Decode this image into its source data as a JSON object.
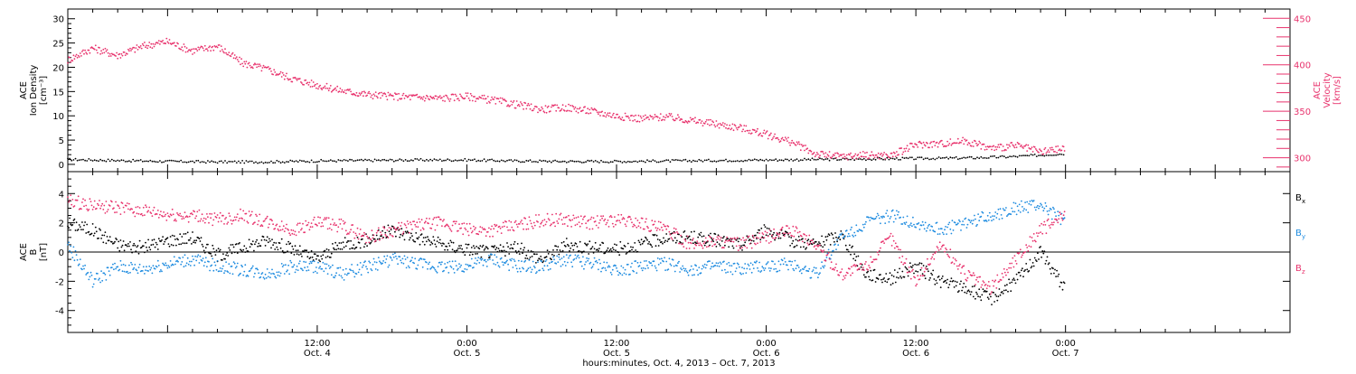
{
  "colors": {
    "black": "#000000",
    "pink": "#e8336d",
    "blue": "#1f8ce0"
  },
  "xaxis": {
    "title": "hours:minutes, Oct.  4, 2013 – Oct.  7, 2013",
    "range_hours": [
      -8,
      90
    ],
    "ticks": [
      {
        "hour": 12,
        "time": "12:00",
        "day": "Oct. 4"
      },
      {
        "hour": 24,
        "time": "0:00",
        "day": "Oct. 5"
      },
      {
        "hour": 36,
        "time": "12:00",
        "day": "Oct. 5"
      },
      {
        "hour": 48,
        "time": "0:00",
        "day": "Oct. 6"
      },
      {
        "hour": 60,
        "time": "12:00",
        "day": "Oct. 6"
      },
      {
        "hour": 72,
        "time": "0:00",
        "day": "Oct. 7"
      }
    ]
  },
  "chart_data": [
    {
      "type": "scatter",
      "panel": "top",
      "left_axis": {
        "label_lines": [
          "ACE",
          "Ion Density",
          "[cm⁻³]"
        ],
        "ylim": [
          -1.5,
          32
        ],
        "ticks": [
          0,
          5,
          10,
          15,
          20,
          25,
          30
        ],
        "color": "#000000"
      },
      "right_axis": {
        "label_lines": [
          "ACE",
          "Velocity",
          "[km/s]"
        ],
        "ylim": [
          285,
          460
        ],
        "ticks": [
          300,
          350,
          400,
          450
        ],
        "color": "#e8336d"
      },
      "series": [
        {
          "axis": "left",
          "color": "#000000",
          "x": [
            -8,
            -4,
            0,
            4,
            8,
            12,
            16,
            20,
            24,
            28,
            32,
            36,
            40,
            44,
            48,
            52,
            56,
            60,
            64,
            68,
            72
          ],
          "y": [
            1.0,
            0.8,
            0.6,
            0.5,
            0.5,
            0.7,
            0.8,
            0.9,
            0.9,
            0.7,
            0.6,
            0.6,
            0.7,
            0.8,
            0.9,
            1.0,
            1.1,
            1.2,
            1.3,
            1.6,
            2.2
          ]
        },
        {
          "axis": "right",
          "color": "#e8336d",
          "x": [
            -8,
            -6,
            -4,
            -2,
            0,
            2,
            4,
            6,
            8,
            10,
            12,
            14,
            16,
            18,
            20,
            22,
            24,
            26,
            28,
            30,
            32,
            34,
            36,
            38,
            40,
            42,
            44,
            46,
            48,
            50,
            52,
            54,
            56,
            58,
            60,
            62,
            64,
            66,
            68,
            70,
            72
          ],
          "y": [
            405,
            418,
            410,
            420,
            425,
            415,
            420,
            402,
            395,
            385,
            378,
            372,
            368,
            366,
            365,
            364,
            366,
            362,
            357,
            352,
            354,
            350,
            345,
            342,
            344,
            340,
            336,
            332,
            325,
            317,
            304,
            301,
            303,
            302,
            314,
            315,
            318,
            310,
            313,
            306,
            310
          ]
        }
      ]
    },
    {
      "type": "scatter",
      "panel": "bottom",
      "left_axis": {
        "label_lines": [
          "ACE",
          "B",
          "[nT]"
        ],
        "ylim": [
          -5.5,
          5.5
        ],
        "ticks": [
          -4,
          -2,
          0,
          2,
          4
        ],
        "color": "#000000"
      },
      "legend": [
        {
          "label": "B",
          "sub": "x",
          "color": "#000000"
        },
        {
          "label": "B",
          "sub": "y",
          "color": "#1f8ce0"
        },
        {
          "label": "B",
          "sub": "z",
          "color": "#e8336d"
        }
      ],
      "series": [
        {
          "name": "Bx",
          "color": "#000000",
          "x": [
            -8,
            -6,
            -4,
            -2,
            0,
            2,
            4,
            6,
            8,
            10,
            12,
            14,
            16,
            18,
            20,
            22,
            24,
            26,
            28,
            30,
            32,
            34,
            36,
            38,
            40,
            42,
            44,
            46,
            48,
            50,
            52,
            54,
            56,
            58,
            60,
            62,
            64,
            66,
            68,
            70,
            72
          ],
          "y": [
            2.0,
            1.5,
            0.5,
            0.3,
            0.8,
            1.0,
            -0.2,
            0.3,
            0.8,
            0.2,
            -0.5,
            0.5,
            0.8,
            1.5,
            1.0,
            0.5,
            0.2,
            0.0,
            0.3,
            -0.5,
            0.5,
            0.3,
            0.2,
            0.5,
            1.0,
            1.0,
            0.8,
            0.5,
            1.5,
            0.8,
            0.5,
            1.2,
            -1.5,
            -1.8,
            -1.0,
            -2.0,
            -2.5,
            -3.2,
            -2.0,
            0.0,
            -2.5
          ]
        },
        {
          "name": "By",
          "color": "#1f8ce0",
          "x": [
            -8,
            -6,
            -4,
            -2,
            0,
            2,
            4,
            6,
            8,
            10,
            12,
            14,
            16,
            18,
            20,
            22,
            24,
            26,
            28,
            30,
            32,
            34,
            36,
            38,
            40,
            42,
            44,
            46,
            48,
            50,
            52,
            54,
            56,
            58,
            60,
            62,
            64,
            66,
            68,
            70,
            72
          ],
          "y": [
            0.5,
            -2.0,
            -1.0,
            -1.2,
            -0.8,
            -0.5,
            -1.0,
            -1.2,
            -1.5,
            -1.0,
            -1.0,
            -1.5,
            -1.0,
            -0.5,
            -0.8,
            -1.0,
            -1.0,
            -0.5,
            -1.0,
            -1.0,
            -0.5,
            -0.8,
            -1.2,
            -1.0,
            -0.8,
            -1.2,
            -1.0,
            -1.2,
            -1.0,
            -0.8,
            -1.5,
            1.0,
            2.0,
            2.5,
            2.0,
            1.5,
            2.0,
            2.5,
            3.0,
            3.2,
            2.0
          ]
        },
        {
          "name": "Bz",
          "color": "#e8336d",
          "x": [
            -8,
            -6,
            -4,
            -2,
            0,
            2,
            4,
            6,
            8,
            10,
            12,
            14,
            16,
            18,
            20,
            22,
            24,
            26,
            28,
            30,
            32,
            34,
            36,
            38,
            40,
            42,
            44,
            46,
            48,
            50,
            52,
            54,
            56,
            58,
            60,
            62,
            64,
            66,
            68,
            70,
            72
          ],
          "y": [
            3.5,
            3.2,
            3.0,
            2.8,
            2.5,
            2.5,
            2.2,
            2.5,
            2.0,
            1.5,
            2.0,
            1.8,
            1.0,
            1.5,
            1.8,
            2.0,
            1.5,
            1.5,
            1.8,
            2.2,
            2.2,
            2.0,
            2.2,
            2.0,
            1.5,
            0.5,
            0.8,
            0.5,
            1.0,
            1.5,
            0.5,
            -1.5,
            -1.0,
            1.0,
            -2.0,
            0.5,
            -1.5,
            -2.5,
            -0.5,
            1.5,
            2.5
          ]
        }
      ]
    }
  ]
}
